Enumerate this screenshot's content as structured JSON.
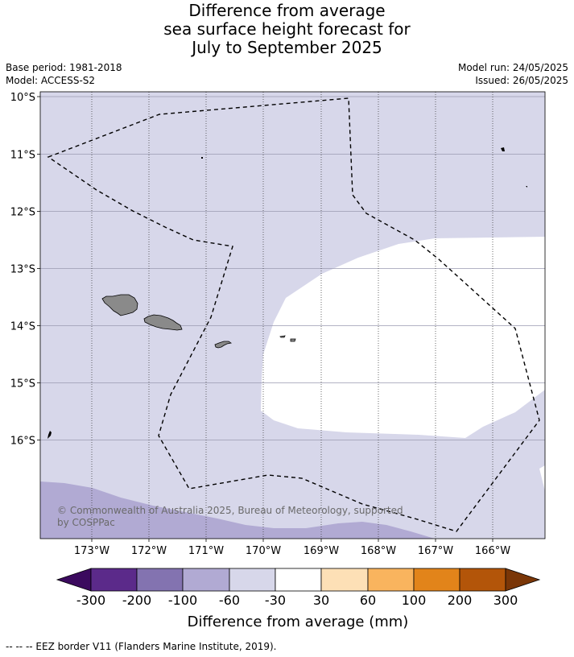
{
  "title": {
    "line1": "Difference from average",
    "line2": "sea surface height forecast for",
    "line3": "July to September 2025"
  },
  "meta": {
    "base_period": "Base period: 1981-2018",
    "model": "Model: ACCESS-S2",
    "model_run": "Model run: 24/05/2025",
    "issued": "Issued: 26/05/2025"
  },
  "map": {
    "lat_labels": [
      "10°S",
      "11°S",
      "12°S",
      "13°S",
      "14°S",
      "15°S",
      "16°S"
    ],
    "lon_labels": [
      "173°W",
      "172°W",
      "171°W",
      "170°W",
      "169°W",
      "168°W",
      "167°W",
      "166°W"
    ],
    "copyright_line1": "© Commonwealth of Australia 2025, Bureau of Meteorology, supported",
    "copyright_line2": "by COSPPac",
    "colors": {
      "background_class": "#d7d7ea",
      "lower_class": "#b1aad3",
      "neutral_class": "#ffffff",
      "land": "#8a8a8a"
    }
  },
  "colorbar": {
    "ticks": [
      "-300",
      "-200",
      "-100",
      "-60",
      "-30",
      "30",
      "60",
      "100",
      "200",
      "300"
    ],
    "label": "Difference from average (mm)",
    "colors": [
      "#3b0a5e",
      "#5b2a8a",
      "#8373b0",
      "#b1aad3",
      "#d7d7ea",
      "#ffffff",
      "#fde0b6",
      "#f9b45e",
      "#e2841a",
      "#b35509",
      "#7a3607"
    ]
  },
  "footnote": "--  --  -- EEZ border V11 (Flanders Marine Institute, 2019)."
}
